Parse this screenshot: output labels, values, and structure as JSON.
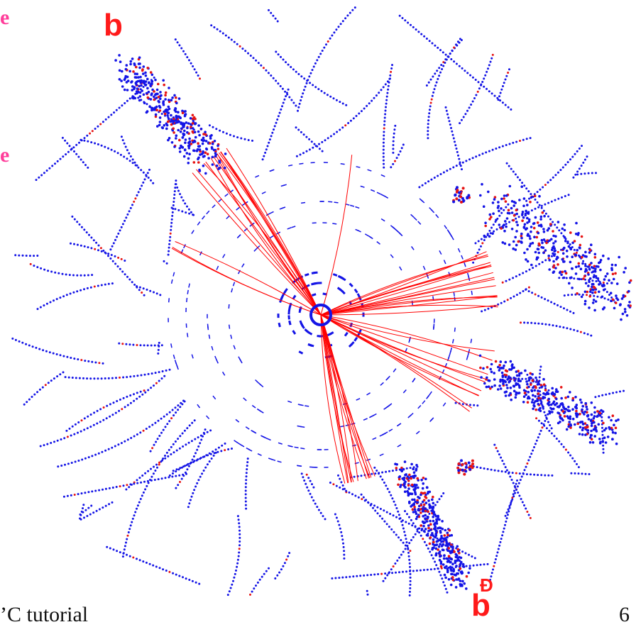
{
  "labels": {
    "jet_top": "b",
    "jet_bottom": "b",
    "jet_bottom_bar": "̅",
    "side_1": "e",
    "side_2": "e"
  },
  "footer": {
    "text": "’C tutorial",
    "page": "6"
  },
  "colors": {
    "hits": "#1414e6",
    "tagged_hits": "#e61414",
    "tracks": "#ff0000",
    "jet_label": "#ff1a1a",
    "side_label": "#ff3d9a"
  }
}
